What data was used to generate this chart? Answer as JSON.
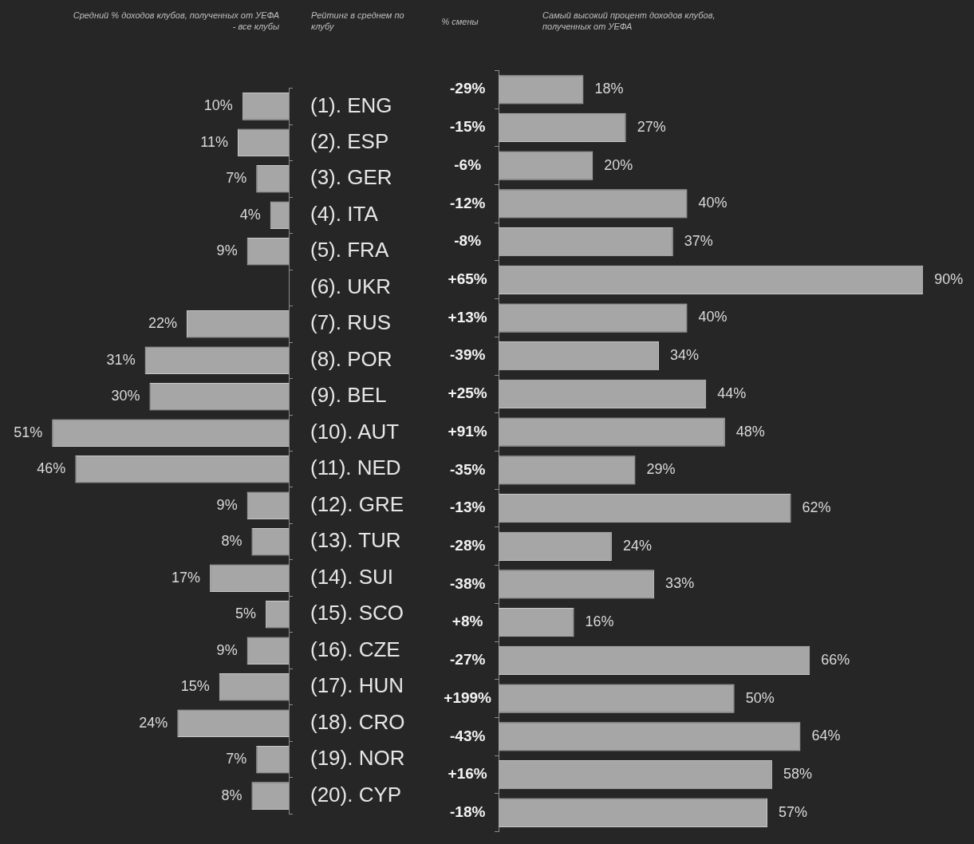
{
  "chart_data": [
    {
      "type": "bar",
      "orientation": "horizontal",
      "title": "Средний % доходов клубов, полученных от УЕФА - все клубы",
      "ylabel": "Рейтинг в среднем по клубу",
      "categories": [
        "(1). ENG",
        "(2). ESP",
        "(3). GER",
        "(4). ITA",
        "(5). FRA",
        "(6). UKR",
        "(7). RUS",
        "(8). POR",
        "(9). BEL",
        "(10). AUT",
        "(11). NED",
        "(12). GRE",
        "(13). TUR",
        "(14). SUI",
        "(15). SCO",
        "(16). CZE",
        "(17). HUN",
        "(18). CRO",
        "(19). NOR",
        "(20). CYP"
      ],
      "color": "#a6a6a6",
      "values": [
        10,
        11,
        7,
        4,
        9,
        null,
        22,
        31,
        30,
        51,
        46,
        9,
        8,
        17,
        5,
        9,
        15,
        24,
        7,
        8
      ],
      "value_labels": [
        "10%",
        "11%",
        "7%",
        "4%",
        "9%",
        null,
        "22%",
        "31%",
        "30%",
        "51%",
        "46%",
        "9%",
        "8%",
        "17%",
        "5%",
        "9%",
        "15%",
        "24%",
        "7%",
        "8%"
      ]
    },
    {
      "type": "bar",
      "orientation": "horizontal",
      "title": "Самый высокий процент доходов клубов, полученных от УЕФА",
      "ylabel": "% смены",
      "categories": [
        "-29%",
        "-15%",
        "-6%",
        "-12%",
        "-8%",
        "+65%",
        "+13%",
        "-39%",
        "+25%",
        "+91%",
        "-35%",
        "-13%",
        "-28%",
        "-38%",
        "+8%",
        "-27%",
        "+199%",
        "-43%",
        "+16%",
        "-18%"
      ],
      "color": "#a6a6a6",
      "values": [
        18,
        27,
        20,
        40,
        37,
        90,
        40,
        34,
        44,
        48,
        29,
        62,
        24,
        33,
        16,
        66,
        50,
        64,
        58,
        57
      ],
      "value_labels": [
        "18%",
        "27%",
        "20%",
        "40%",
        "37%",
        "90%",
        "40%",
        "34%",
        "44%",
        "48%",
        "29%",
        "62%",
        "24%",
        "33%",
        "16%",
        "66%",
        "50%",
        "64%",
        "58%",
        "57%"
      ]
    }
  ]
}
